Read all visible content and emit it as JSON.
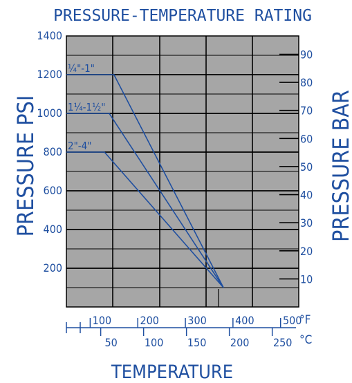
{
  "colors": {
    "accent": "#1f4fa0",
    "plot_bg": "#a6a6a6",
    "grid": "#000000"
  },
  "chart_data": {
    "type": "line",
    "title": "PRESSURE-TEMPERATURE RATING",
    "ylabel": "PRESSURE PSI",
    "y2label": "PRESSURE BAR",
    "xlabel": "TEMPERATURE",
    "psi_ticks": [
      "200",
      "400",
      "600",
      "800",
      "1000",
      "1200",
      "1400"
    ],
    "psi_tick_values": [
      200,
      400,
      600,
      800,
      1000,
      1200,
      1400
    ],
    "bar_ticks": [
      "10",
      "20",
      "30",
      "40",
      "50",
      "60",
      "70",
      "80",
      "90"
    ],
    "bar_tick_values": [
      10,
      20,
      30,
      40,
      50,
      60,
      70,
      80,
      90
    ],
    "f_ticks": [
      "100",
      "200",
      "300",
      "400",
      "500"
    ],
    "f_tick_values": [
      100,
      200,
      300,
      400,
      500
    ],
    "c_ticks": [
      "50",
      "100",
      "150",
      "200",
      "250"
    ],
    "c_tick_values": [
      50,
      100,
      150,
      200,
      250
    ],
    "f_unit": "°F",
    "c_unit": "°C",
    "ylim": [
      0,
      1400
    ],
    "xlim_f": [
      50,
      550
    ],
    "series": [
      {
        "name": "¼\"-1\"",
        "x": [
          50,
          150,
          380
        ],
        "y": [
          1200,
          1200,
          100
        ]
      },
      {
        "name": "1¼-1½\"",
        "x": [
          50,
          140,
          380
        ],
        "y": [
          1000,
          1000,
          100
        ]
      },
      {
        "name": "2\"-4\"",
        "x": [
          50,
          130,
          380
        ],
        "y": [
          800,
          800,
          100
        ]
      }
    ]
  }
}
